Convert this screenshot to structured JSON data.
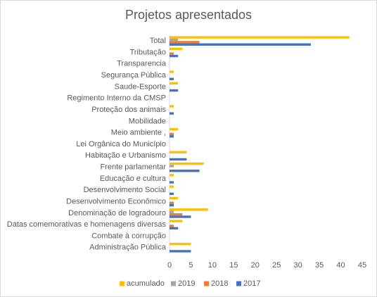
{
  "chart_data": {
    "type": "hbar",
    "title": "Projetos apresentados",
    "categories": [
      "Total",
      "Tributação",
      "Transparencia",
      "Segurança Pública",
      "Saude-Esporte",
      "Regimento Interno da CMSP",
      "Proteção dos animais",
      "Mobilidade",
      "Meio ambiente ,",
      "Lei Orgânica do Município",
      "Habitação e Urbanismo",
      "Frente parlamentar",
      "Educação e cultura",
      "Desenvolvimento Social",
      "Desenvolvimento Econômico",
      "Denominação de logradouro",
      "Datas comemorativas e homenagens diversas",
      "Combate à corrupção",
      "Administração Pública"
    ],
    "series": [
      {
        "name": "acumulado",
        "color": "#ffc000",
        "values": [
          42,
          3,
          0,
          1,
          2,
          0,
          1,
          0,
          2,
          0,
          4,
          8,
          1,
          1,
          2,
          9,
          3,
          0,
          5
        ]
      },
      {
        "name": "2019",
        "color": "#a5a5a5",
        "values": [
          2,
          0,
          0,
          0,
          0,
          0,
          0,
          0,
          0,
          0,
          0,
          1,
          0,
          0,
          0,
          1,
          0,
          0,
          0
        ]
      },
      {
        "name": "2018",
        "color": "#ed7d31",
        "values": [
          7,
          1,
          0,
          0,
          0,
          0,
          0,
          0,
          1,
          0,
          0,
          0,
          0,
          0,
          1,
          3,
          1,
          0,
          0
        ]
      },
      {
        "name": "2017",
        "color": "#4472c4",
        "values": [
          33,
          2,
          0,
          1,
          2,
          0,
          1,
          0,
          1,
          0,
          4,
          7,
          1,
          1,
          1,
          5,
          2,
          0,
          5
        ]
      }
    ],
    "xlim": [
      0,
      45
    ],
    "xticks": [
      0,
      5,
      10,
      15,
      20,
      25,
      30,
      35,
      40,
      45
    ],
    "legend": "bottom"
  }
}
